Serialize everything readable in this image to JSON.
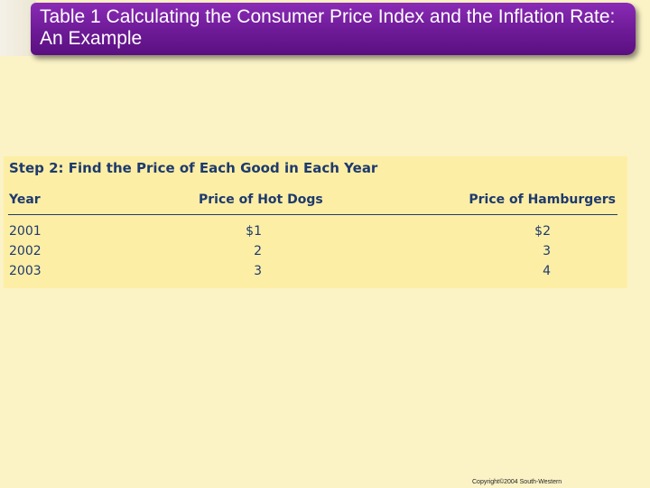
{
  "title": "Table 1 Calculating the Consumer Price Index and the Inflation Rate: An Example",
  "table": {
    "step_heading": "Step 2: Find the Price of Each Good in Each Year",
    "headers": {
      "year": "Year",
      "hot_dogs": "Price of Hot Dogs",
      "hamburgers": "Price of Hamburgers"
    },
    "rows": [
      {
        "year": "2001",
        "hot_dogs": "$1",
        "hamburgers": "$2"
      },
      {
        "year": "2002",
        "hot_dogs": "2",
        "hamburgers": "3"
      },
      {
        "year": "2003",
        "hot_dogs": "3",
        "hamburgers": "4"
      }
    ]
  },
  "footer": {
    "copyright": "Copyright©2004 South-Western"
  },
  "colors": {
    "title_bar": "#6d1a96",
    "background": "#fbf3c6",
    "panel": "#fdeea5",
    "table_text": "#1e3a6e"
  }
}
